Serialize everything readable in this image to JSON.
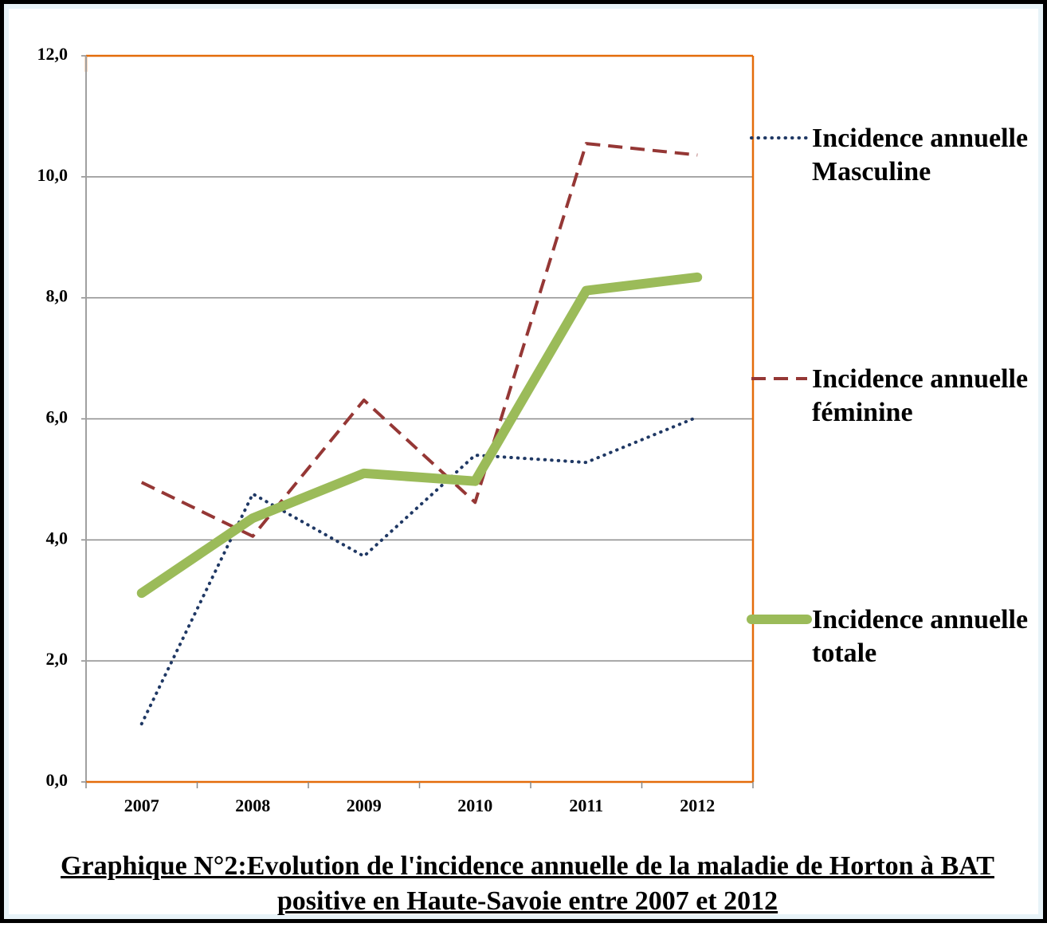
{
  "chart_data": {
    "type": "line",
    "title": "Graphique N°2:Evolution de l'incidence annuelle de la maladie de Horton à BAT positive en Haute-Savoie entre 2007 et 2012",
    "categories": [
      "2007",
      "2008",
      "2009",
      "2010",
      "2011",
      "2012"
    ],
    "series": [
      {
        "name": "Incidence annuelle Masculine",
        "color": "#1f3864",
        "dash": "dotted",
        "values": [
          0.96,
          4.76,
          3.73,
          5.4,
          5.28,
          6.03
        ]
      },
      {
        "name": "Incidence annuelle féminine",
        "color": "#953735",
        "dash": "dashed",
        "values": [
          4.95,
          4.06,
          6.31,
          4.62,
          10.55,
          10.36
        ]
      },
      {
        "name": "Incidence annuelle totale",
        "color": "#9bbb59",
        "dash": "solid",
        "values": [
          3.12,
          4.36,
          5.1,
          4.97,
          8.12,
          8.34
        ]
      }
    ],
    "ylim": [
      0,
      12
    ],
    "yticks": [
      {
        "value": 0,
        "label": "0,0"
      },
      {
        "value": 2,
        "label": "2,0"
      },
      {
        "value": 4,
        "label": "4,0"
      },
      {
        "value": 6,
        "label": "6,0"
      },
      {
        "value": 8,
        "label": "8,0"
      },
      {
        "value": 10,
        "label": "10,0"
      },
      {
        "value": 12,
        "label": "12,0"
      }
    ],
    "grid": true,
    "legend_position": "right"
  }
}
